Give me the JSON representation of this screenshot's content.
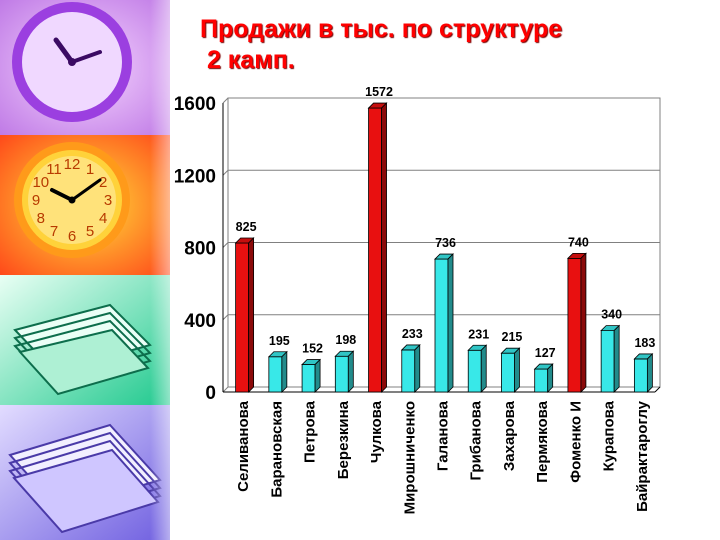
{
  "title": {
    "line1": "Продажи в тыс. по структуре",
    "line2": " 2 камп."
  },
  "sidebar": {
    "panels": [
      {
        "name": "purple-clock",
        "bg": "#d99cf2"
      },
      {
        "name": "orange-clock",
        "bg": "#ff7a3a"
      },
      {
        "name": "green-papers",
        "bg": "#30d9a6"
      },
      {
        "name": "violet-papers",
        "bg": "#8a7af0"
      }
    ],
    "clock_numerals": [
      "12",
      "1",
      "2",
      "3",
      "4",
      "5",
      "6",
      "7",
      "8",
      "9",
      "10",
      "11"
    ]
  },
  "chart_data": {
    "type": "bar",
    "ylim": [
      0,
      1600
    ],
    "yticks": [
      0,
      400,
      800,
      1200,
      1600
    ],
    "grid": true,
    "categories": [
      "Селиванова",
      "Барановская",
      "Петрова",
      "Березкина",
      "Чулкова",
      "Мирошниченко",
      "Галанова",
      "Грибанова",
      "Захарова",
      "Пермякова",
      "Фоменко И",
      "Курапова",
      "Байрактароглу"
    ],
    "values": [
      825,
      195,
      152,
      198,
      1572,
      233,
      736,
      231,
      215,
      127,
      740,
      340,
      183
    ],
    "value_labels": [
      "825",
      "195",
      "152",
      "198",
      "1572",
      "233",
      "736",
      "231",
      "215",
      "127",
      "740",
      "340",
      "183"
    ],
    "bar_colors": [
      "#e81010",
      "#38e8e8",
      "#38e8e8",
      "#38e8e8",
      "#e81010",
      "#38e8e8",
      "#38e8e8",
      "#38e8e8",
      "#38e8e8",
      "#38e8e8",
      "#e81010",
      "#38e8e8",
      "#38e8e8"
    ],
    "colors": {
      "red": "#e81010",
      "cyan": "#38e8e8",
      "grid": "#808080"
    }
  }
}
